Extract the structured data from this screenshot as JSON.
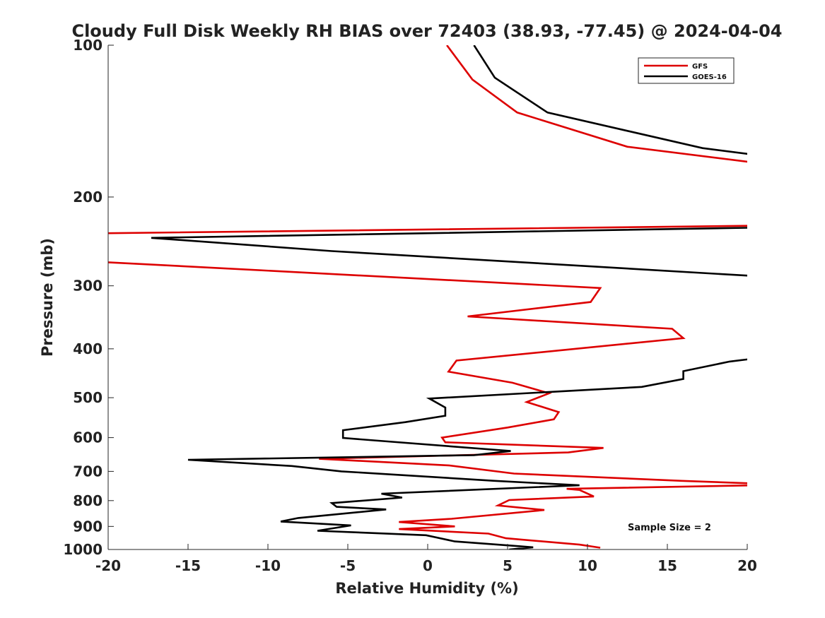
{
  "chart_data": {
    "type": "line",
    "title": "Cloudy Full Disk Weekly RH BIAS over 72403 (38.93, -77.45) @ 2024-04-04",
    "xlabel": "Relative Humidity (%)",
    "ylabel": "Pressure (mb)",
    "xlim": [
      -20,
      20
    ],
    "ylim": [
      100,
      1000
    ],
    "y_scale": "log",
    "y_reversed": true,
    "grid": false,
    "legend_position": "top-right",
    "x_ticks": [
      "-20",
      "-15",
      "-10",
      "-5",
      "0",
      "5",
      "10",
      "15",
      "20"
    ],
    "y_ticks": [
      "100",
      "200",
      "300",
      "400",
      "500",
      "600",
      "700",
      "800",
      "900",
      "1000"
    ],
    "annotation": "Sample Size = 2",
    "series": [
      {
        "name": "GFS",
        "color": "#dd0000",
        "points": [
          [
            1.2,
            100
          ],
          [
            2.8,
            117
          ],
          [
            5.6,
            136
          ],
          [
            12.5,
            159
          ],
          [
            20.5,
            171
          ],
          [
            20.5,
            228
          ],
          [
            -20.5,
            236
          ],
          [
            -20.5,
            269
          ],
          [
            10.8,
            303
          ],
          [
            10.2,
            323
          ],
          [
            2.5,
            345
          ],
          [
            15.3,
            365
          ],
          [
            16.0,
            381
          ],
          [
            1.8,
            422
          ],
          [
            1.3,
            444
          ],
          [
            5.3,
            467
          ],
          [
            7.6,
            490
          ],
          [
            6.2,
            510
          ],
          [
            8.2,
            534
          ],
          [
            7.9,
            552
          ],
          [
            5.0,
            573
          ],
          [
            0.9,
            600
          ],
          [
            1.1,
            613
          ],
          [
            11.0,
            629
          ],
          [
            8.8,
            642
          ],
          [
            -6.8,
            661
          ],
          [
            1.3,
            681
          ],
          [
            5.4,
            707
          ],
          [
            15.9,
            731
          ],
          [
            20.5,
            740
          ],
          [
            20.5,
            746
          ],
          [
            8.7,
            758
          ],
          [
            9.5,
            762
          ],
          [
            10.4,
            785
          ],
          [
            5.1,
            798
          ],
          [
            4.4,
            818
          ],
          [
            7.3,
            835
          ],
          [
            1.5,
            869
          ],
          [
            -1.8,
            882
          ],
          [
            1.7,
            900
          ],
          [
            -1.8,
            911
          ],
          [
            3.8,
            930
          ],
          [
            4.9,
            950
          ],
          [
            9.5,
            978
          ],
          [
            10.8,
            992
          ]
        ]
      },
      {
        "name": "GOES-16",
        "color": "#000000",
        "points": [
          [
            2.9,
            100
          ],
          [
            4.2,
            116
          ],
          [
            7.5,
            136
          ],
          [
            17.2,
            160
          ],
          [
            20.5,
            165
          ],
          [
            20.5,
            230
          ],
          [
            -17.3,
            241
          ],
          [
            -6.0,
            256
          ],
          [
            20.5,
            287
          ],
          [
            20.5,
            418
          ],
          [
            18.9,
            424
          ],
          [
            16.0,
            443
          ],
          [
            16.0,
            459
          ],
          [
            13.4,
            476
          ],
          [
            0.1,
            502
          ],
          [
            1.1,
            523
          ],
          [
            1.1,
            543
          ],
          [
            -1.4,
            559
          ],
          [
            -5.3,
            580
          ],
          [
            -5.3,
            601
          ],
          [
            5.2,
            638
          ],
          [
            2.9,
            650
          ],
          [
            -15.0,
            664
          ],
          [
            -8.5,
            683
          ],
          [
            -5.4,
            700
          ],
          [
            4.2,
            731
          ],
          [
            9.5,
            746
          ],
          [
            -2.9,
            775
          ],
          [
            -1.6,
            789
          ],
          [
            -6.0,
            809
          ],
          [
            -5.7,
            823
          ],
          [
            -2.6,
            833
          ],
          [
            -8.1,
            866
          ],
          [
            -9.2,
            880
          ],
          [
            -4.8,
            896
          ],
          [
            -6.9,
            918
          ],
          [
            -0.1,
            937
          ],
          [
            1.7,
            964
          ],
          [
            5.7,
            985
          ],
          [
            6.6,
            990
          ],
          [
            5.1,
            1000
          ]
        ]
      }
    ]
  }
}
